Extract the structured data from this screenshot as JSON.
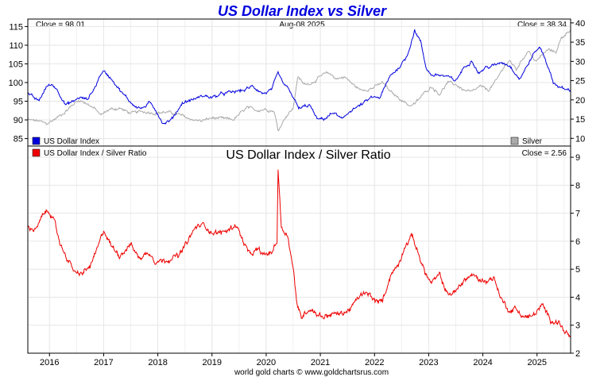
{
  "chart_data": [
    {
      "type": "line",
      "title": "US Dollar Index vs Silver",
      "date_label": "Aug-08  2025",
      "close_left_label": "Close = 98.01",
      "close_right_label": "Close = 38.34",
      "x_ticks": [
        "2016",
        "2017",
        "2018",
        "2019",
        "2020",
        "2021",
        "2022",
        "2023",
        "2024",
        "2025"
      ],
      "x_range": [
        2015.6,
        2025.62
      ],
      "y_left_range": [
        83,
        117
      ],
      "y_left_ticks": [
        85,
        90,
        95,
        100,
        105,
        110,
        115
      ],
      "y_right_range": [
        8,
        41
      ],
      "y_right_ticks": [
        10,
        15,
        20,
        25,
        30,
        35,
        40
      ],
      "colors": {
        "usd": "#0000dd",
        "silver": "#aaaaaa"
      },
      "series": [
        {
          "name": "US Dollar Index",
          "axis": "left",
          "points": [
            [
              2015.6,
              97
            ],
            [
              2015.8,
              95
            ],
            [
              2015.95,
              99
            ],
            [
              2016.05,
              99.5
            ],
            [
              2016.15,
              98
            ],
            [
              2016.3,
              94
            ],
            [
              2016.45,
              95
            ],
            [
              2016.55,
              96
            ],
            [
              2016.7,
              95.5
            ],
            [
              2016.85,
              99
            ],
            [
              2016.95,
              102.5
            ],
            [
              2017.0,
              103
            ],
            [
              2017.15,
              101
            ],
            [
              2017.35,
              97
            ],
            [
              2017.55,
              94
            ],
            [
              2017.7,
              93
            ],
            [
              2017.85,
              94.5
            ],
            [
              2017.95,
              93
            ],
            [
              2018.1,
              89
            ],
            [
              2018.25,
              90
            ],
            [
              2018.45,
              94.5
            ],
            [
              2018.65,
              95.5
            ],
            [
              2018.85,
              96.5
            ],
            [
              2019.0,
              96
            ],
            [
              2019.2,
              97
            ],
            [
              2019.4,
              97.5
            ],
            [
              2019.6,
              98
            ],
            [
              2019.75,
              99
            ],
            [
              2019.95,
              97
            ],
            [
              2020.1,
              98
            ],
            [
              2020.22,
              102.5
            ],
            [
              2020.3,
              100
            ],
            [
              2020.45,
              97.5
            ],
            [
              2020.6,
              93
            ],
            [
              2020.8,
              94
            ],
            [
              2020.95,
              90
            ],
            [
              2021.1,
              90.5
            ],
            [
              2021.25,
              92
            ],
            [
              2021.4,
              90
            ],
            [
              2021.55,
              92.5
            ],
            [
              2021.75,
              94
            ],
            [
              2021.95,
              96
            ],
            [
              2022.1,
              96
            ],
            [
              2022.3,
              102
            ],
            [
              2022.45,
              104
            ],
            [
              2022.6,
              107
            ],
            [
              2022.74,
              114
            ],
            [
              2022.85,
              111
            ],
            [
              2022.95,
              104
            ],
            [
              2023.05,
              102
            ],
            [
              2023.2,
              102
            ],
            [
              2023.35,
              101.5
            ],
            [
              2023.5,
              100.5
            ],
            [
              2023.65,
              104
            ],
            [
              2023.8,
              106
            ],
            [
              2023.92,
              102.5
            ],
            [
              2024.05,
              104
            ],
            [
              2024.2,
              104.5
            ],
            [
              2024.35,
              105.5
            ],
            [
              2024.5,
              104.5
            ],
            [
              2024.68,
              101
            ],
            [
              2024.8,
              104
            ],
            [
              2024.95,
              108
            ],
            [
              2025.05,
              109.5
            ],
            [
              2025.15,
              106.5
            ],
            [
              2025.3,
              100
            ],
            [
              2025.45,
              98.5
            ],
            [
              2025.55,
              98
            ],
            [
              2025.62,
              98.01
            ]
          ]
        },
        {
          "name": "Silver",
          "axis": "right",
          "points": [
            [
              2015.6,
              14.8
            ],
            [
              2015.8,
              14.5
            ],
            [
              2015.95,
              13.8
            ],
            [
              2016.1,
              15
            ],
            [
              2016.3,
              17
            ],
            [
              2016.45,
              19
            ],
            [
              2016.55,
              20
            ],
            [
              2016.7,
              19
            ],
            [
              2016.85,
              17.5
            ],
            [
              2016.95,
              16
            ],
            [
              2017.1,
              17.5
            ],
            [
              2017.3,
              17.8
            ],
            [
              2017.5,
              16.5
            ],
            [
              2017.7,
              17
            ],
            [
              2017.95,
              16.6
            ],
            [
              2018.15,
              16.8
            ],
            [
              2018.35,
              16.4
            ],
            [
              2018.6,
              15
            ],
            [
              2018.8,
              14.5
            ],
            [
              2019.0,
              15.3
            ],
            [
              2019.2,
              15.1
            ],
            [
              2019.4,
              14.9
            ],
            [
              2019.55,
              16.8
            ],
            [
              2019.65,
              18
            ],
            [
              2019.8,
              17.3
            ],
            [
              2020.0,
              17.6
            ],
            [
              2020.15,
              17
            ],
            [
              2020.22,
              12
            ],
            [
              2020.35,
              15.5
            ],
            [
              2020.5,
              17.8
            ],
            [
              2020.58,
              26
            ],
            [
              2020.7,
              24
            ],
            [
              2020.85,
              24.5
            ],
            [
              2021.05,
              26.5
            ],
            [
              2021.15,
              27
            ],
            [
              2021.3,
              25.5
            ],
            [
              2021.45,
              26
            ],
            [
              2021.6,
              24
            ],
            [
              2021.75,
              22.5
            ],
            [
              2021.95,
              23
            ],
            [
              2022.15,
              24.5
            ],
            [
              2022.3,
              22
            ],
            [
              2022.5,
              20
            ],
            [
              2022.65,
              18.5
            ],
            [
              2022.75,
              19
            ],
            [
              2022.9,
              21.5
            ],
            [
              2023.05,
              23.5
            ],
            [
              2023.2,
              21.5
            ],
            [
              2023.35,
              24.5
            ],
            [
              2023.5,
              24
            ],
            [
              2023.65,
              22.5
            ],
            [
              2023.8,
              22
            ],
            [
              2023.95,
              23.5
            ],
            [
              2024.1,
              22.5
            ],
            [
              2024.25,
              25
            ],
            [
              2024.4,
              29
            ],
            [
              2024.5,
              30
            ],
            [
              2024.62,
              28
            ],
            [
              2024.75,
              31
            ],
            [
              2024.85,
              33
            ],
            [
              2024.95,
              30
            ],
            [
              2025.05,
              31
            ],
            [
              2025.2,
              33
            ],
            [
              2025.35,
              32.5
            ],
            [
              2025.45,
              36
            ],
            [
              2025.55,
              37.5
            ],
            [
              2025.62,
              38.34
            ]
          ]
        }
      ]
    },
    {
      "type": "line",
      "title": "US Dollar Index / Silver Ratio",
      "close_label": "Close = 2.56",
      "x_ticks": [
        "2016",
        "2017",
        "2018",
        "2019",
        "2020",
        "2021",
        "2022",
        "2023",
        "2024",
        "2025"
      ],
      "x_range": [
        2015.6,
        2025.62
      ],
      "y_range": [
        2,
        9.4
      ],
      "y_ticks": [
        2,
        3,
        4,
        5,
        6,
        7,
        8,
        9
      ],
      "colors": {
        "ratio": "#ee0000"
      },
      "series": [
        {
          "name": "US Dollar Index / Silver Ratio",
          "points": [
            [
              2015.6,
              6.5
            ],
            [
              2015.75,
              6.4
            ],
            [
              2015.9,
              7.0
            ],
            [
              2016.0,
              7.1
            ],
            [
              2016.1,
              6.6
            ],
            [
              2016.2,
              5.9
            ],
            [
              2016.35,
              5.3
            ],
            [
              2016.5,
              4.8
            ],
            [
              2016.6,
              4.85
            ],
            [
              2016.75,
              5.1
            ],
            [
              2016.9,
              5.8
            ],
            [
              2017.0,
              6.4
            ],
            [
              2017.15,
              5.8
            ],
            [
              2017.3,
              5.5
            ],
            [
              2017.5,
              5.9
            ],
            [
              2017.65,
              5.4
            ],
            [
              2017.85,
              5.6
            ],
            [
              2017.95,
              5.3
            ],
            [
              2018.1,
              5.3
            ],
            [
              2018.25,
              5.4
            ],
            [
              2018.4,
              5.5
            ],
            [
              2018.55,
              6.0
            ],
            [
              2018.7,
              6.5
            ],
            [
              2018.85,
              6.6
            ],
            [
              2019.0,
              6.3
            ],
            [
              2019.15,
              6.3
            ],
            [
              2019.3,
              6.4
            ],
            [
              2019.45,
              6.6
            ],
            [
              2019.55,
              6.1
            ],
            [
              2019.7,
              5.5
            ],
            [
              2019.85,
              5.7
            ],
            [
              2019.95,
              5.5
            ],
            [
              2020.1,
              5.6
            ],
            [
              2020.2,
              6.0
            ],
            [
              2020.22,
              8.6
            ],
            [
              2020.28,
              6.5
            ],
            [
              2020.4,
              6.2
            ],
            [
              2020.5,
              5.0
            ],
            [
              2020.58,
              3.6
            ],
            [
              2020.65,
              3.3
            ],
            [
              2020.8,
              3.6
            ],
            [
              2020.95,
              3.4
            ],
            [
              2021.05,
              3.3
            ],
            [
              2021.2,
              3.4
            ],
            [
              2021.35,
              3.4
            ],
            [
              2021.5,
              3.5
            ],
            [
              2021.6,
              3.7
            ],
            [
              2021.75,
              4.1
            ],
            [
              2021.9,
              4.1
            ],
            [
              2022.05,
              3.8
            ],
            [
              2022.15,
              3.9
            ],
            [
              2022.3,
              4.8
            ],
            [
              2022.45,
              5.2
            ],
            [
              2022.55,
              5.8
            ],
            [
              2022.7,
              6.2
            ],
            [
              2022.8,
              5.6
            ],
            [
              2022.95,
              4.8
            ],
            [
              2023.05,
              4.5
            ],
            [
              2023.2,
              4.8
            ],
            [
              2023.35,
              4.1
            ],
            [
              2023.5,
              4.2
            ],
            [
              2023.65,
              4.6
            ],
            [
              2023.8,
              4.8
            ],
            [
              2023.95,
              4.6
            ],
            [
              2024.1,
              4.6
            ],
            [
              2024.2,
              4.7
            ],
            [
              2024.35,
              3.9
            ],
            [
              2024.5,
              3.5
            ],
            [
              2024.6,
              3.6
            ],
            [
              2024.75,
              3.3
            ],
            [
              2024.9,
              3.3
            ],
            [
              2025.0,
              3.5
            ],
            [
              2025.1,
              3.7
            ],
            [
              2025.25,
              3.2
            ],
            [
              2025.4,
              3.1
            ],
            [
              2025.5,
              2.8
            ],
            [
              2025.62,
              2.56
            ]
          ]
        }
      ]
    }
  ],
  "legend": {
    "usd": "US Dollar Index",
    "silver": "Silver",
    "ratio": "US Dollar Index / Silver Ratio"
  },
  "footer": "world gold charts © www.goldchartsrus.com"
}
